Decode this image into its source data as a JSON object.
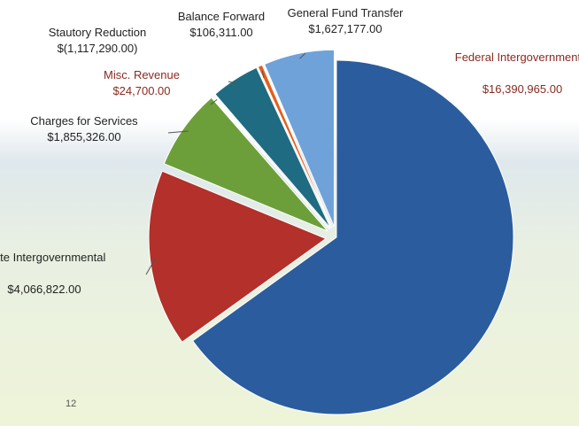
{
  "chart_data": {
    "type": "pie",
    "categories": [
      "Federal Intergovernmental",
      "State Intergovernmental",
      "Charges for Services",
      "Misc. Revenue",
      "Stautory Reduction",
      "Balance Forward",
      "General Fund Transfer"
    ],
    "values": [
      16390965,
      4066822,
      1855326,
      24700,
      -1117290,
      106311,
      1627177
    ],
    "value_labels": [
      "$16,390,965.00",
      "$4,066,822.00",
      "$1,855,326.00",
      "$24,700.00",
      "$(1,117,290.00)",
      "$106,311.00",
      "$1,627,177.00"
    ],
    "colors": [
      "#2b5c9e",
      "#b3302b",
      "#6c9f3a",
      "#ece4a6",
      "#1f6b82",
      "#e2601e",
      "#70a2da"
    ]
  },
  "page_label": "12"
}
